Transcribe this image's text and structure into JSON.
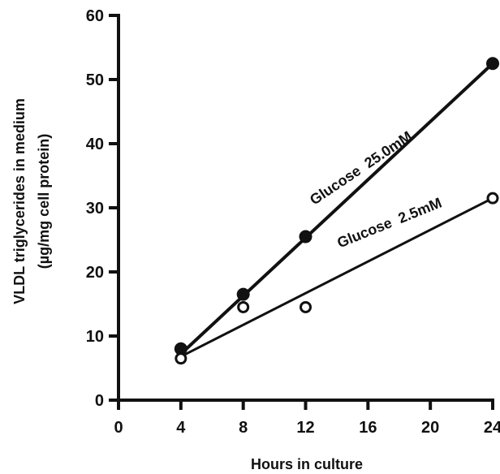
{
  "chart_data": {
    "type": "scatter",
    "xlabel": "Hours in culture",
    "ylabel_lines": [
      "VLDL triglycerides in medium",
      "(µg/mg cell protein)"
    ],
    "x_ticks": [
      0,
      4,
      8,
      12,
      16,
      20,
      24
    ],
    "y_ticks": [
      0,
      10,
      20,
      30,
      40,
      50,
      60
    ],
    "xlim": [
      0,
      24
    ],
    "ylim": [
      0,
      60
    ],
    "grid": false,
    "series": [
      {
        "name": "Glucose  25.0mM",
        "marker": "filled-circle",
        "x": [
          4,
          8,
          12,
          24
        ],
        "y": [
          8,
          16.5,
          25.5,
          52.5
        ],
        "fit": {
          "x": [
            4,
            24
          ],
          "y": [
            7.2,
            52.5
          ]
        }
      },
      {
        "name": "Glucose  2.5mM",
        "marker": "open-circle",
        "x": [
          4,
          8,
          12,
          24
        ],
        "y": [
          6.5,
          14.5,
          14.5,
          31.5
        ],
        "fit": {
          "x": [
            4,
            24
          ],
          "y": [
            6.8,
            31.5
          ]
        }
      }
    ]
  }
}
